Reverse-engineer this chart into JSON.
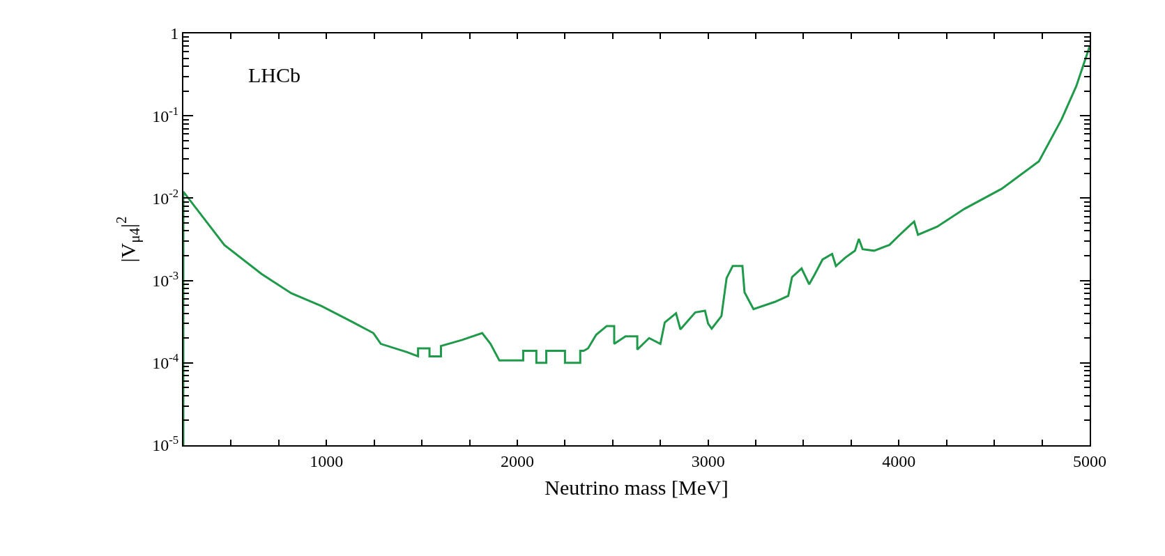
{
  "chart_data": {
    "type": "line",
    "xlabel": "Neutrino mass [MeV]",
    "ylabel": "|V$_{μ4}$|$^{2}$",
    "annotations": [
      "LHCb"
    ],
    "log": "y",
    "marker": "none",
    "line_style": "solid",
    "xlim": [
      250,
      5000
    ],
    "ylim": [
      1e-05,
      1
    ],
    "xticks": [
      {
        "value": 500,
        "label": null
      },
      {
        "value": 750,
        "label": null
      },
      1000,
      {
        "value": 1250,
        "label": null
      },
      {
        "value": 1500,
        "label": null
      },
      {
        "value": 1750,
        "label": null
      },
      2000,
      {
        "value": 2250,
        "label": null
      },
      {
        "value": 2500,
        "label": null
      },
      {
        "value": 2750,
        "label": null
      },
      3000,
      {
        "value": 3250,
        "label": null
      },
      {
        "value": 3500,
        "label": null
      },
      {
        "value": 3750,
        "label": null
      },
      4000,
      {
        "value": 4250,
        "label": null
      },
      {
        "value": 4500,
        "label": null
      },
      {
        "value": 4750,
        "label": null
      },
      5000
    ],
    "yticks": [
      {
        "value": 1e-05,
        "label": "10$^{-5}$"
      },
      {
        "value": 0.0001,
        "label": "10$^{-4}$"
      },
      {
        "value": 0.001,
        "label": "10$^{-3}$"
      },
      {
        "value": 0.01,
        "label": "10$^{-2}$"
      },
      {
        "value": 0.1,
        "label": "10$^{-1}$"
      },
      1
    ],
    "series": [
      {
        "color": "#1f9a4a",
        "x": [
          250,
          250,
          465,
          660,
          816,
          973,
          1129,
          1246,
          1285,
          1422,
          1480,
          1480,
          1540,
          1540,
          1600,
          1600,
          1711,
          1816,
          1860,
          1906,
          2031,
          2031,
          2100,
          2100,
          2152,
          2152,
          2250,
          2250,
          2330,
          2330,
          2348,
          2371,
          2414,
          2469,
          2508,
          2508,
          2567,
          2629,
          2629,
          2691,
          2750,
          2773,
          2832,
          2855,
          2933,
          2984,
          3000,
          3019,
          3070,
          3097,
          3129,
          3180,
          3191,
          3238,
          3350,
          3420,
          3440,
          3490,
          3530,
          3560,
          3600,
          3650,
          3670,
          3720,
          3770,
          3790,
          3810,
          3870,
          3950,
          4000,
          4050,
          4080,
          4100,
          4200,
          4343,
          4539,
          4734,
          4852,
          4930,
          5000
        ],
        "values": [
          1e-05,
          0.012,
          0.0027,
          0.0012,
          0.0007,
          0.00049,
          0.00032,
          0.00023,
          0.00017,
          0.000135,
          0.00012,
          0.00015,
          0.00015,
          0.00012,
          0.00012,
          0.00016,
          0.00019,
          0.00023,
          0.00017,
          0.000107,
          0.000107,
          0.00014,
          0.00014,
          0.0001,
          0.0001,
          0.00014,
          0.00014,
          0.0001,
          0.0001,
          0.00014,
          0.00014,
          0.00015,
          0.00022,
          0.00028,
          0.00028,
          0.00017,
          0.00021,
          0.00021,
          0.000145,
          0.0002,
          0.00017,
          0.00031,
          0.0004,
          0.000255,
          0.00041,
          0.00043,
          0.0003,
          0.00026,
          0.00037,
          0.00107,
          0.0015,
          0.0015,
          0.00072,
          0.00045,
          0.00055,
          0.00065,
          0.0011,
          0.0014,
          0.0009,
          0.0012,
          0.0018,
          0.0021,
          0.0015,
          0.0019,
          0.0023,
          0.0032,
          0.0024,
          0.0023,
          0.0027,
          0.0035,
          0.0045,
          0.0052,
          0.0036,
          0.0045,
          0.0074,
          0.013,
          0.028,
          0.09,
          0.23,
          0.7
        ]
      }
    ]
  }
}
